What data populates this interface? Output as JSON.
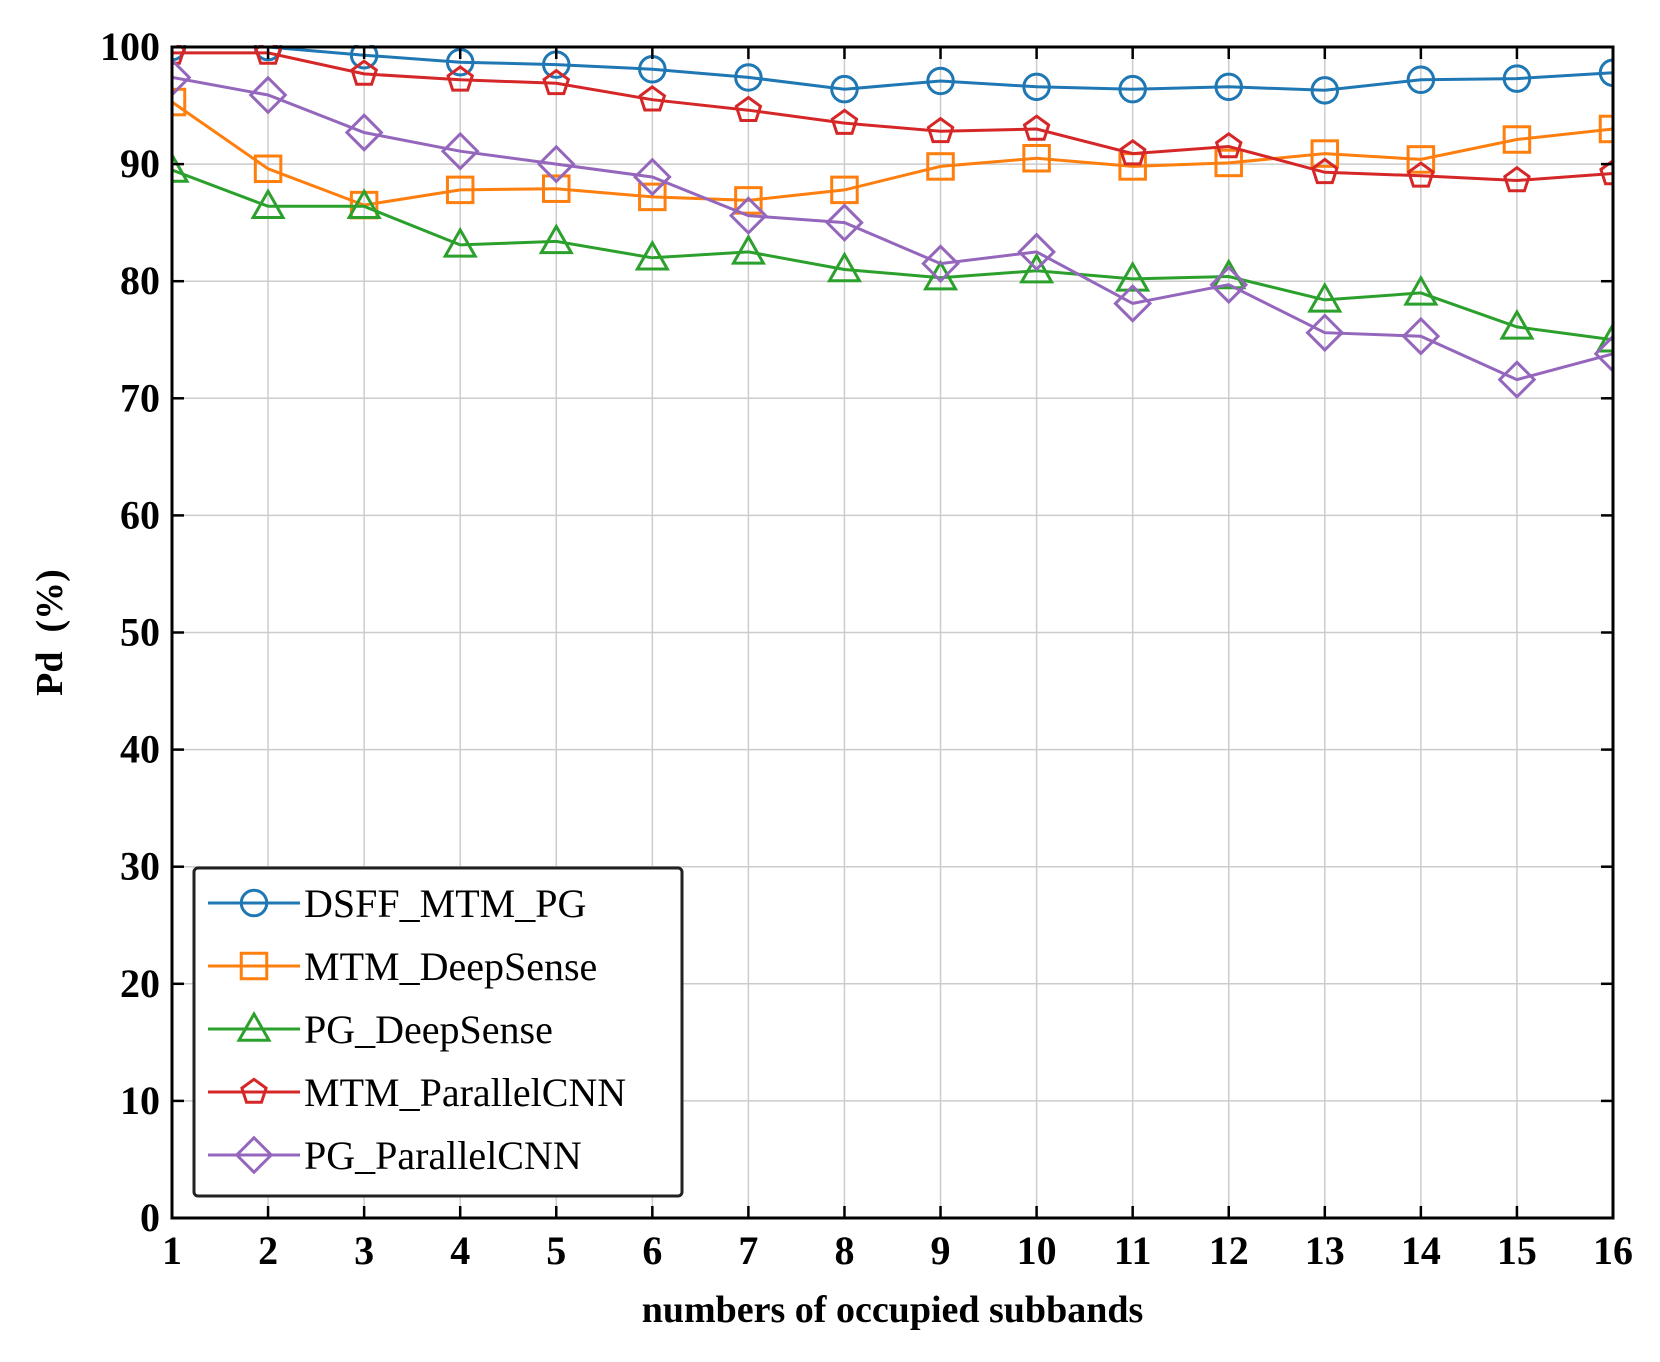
{
  "chart_data": {
    "type": "line",
    "title": "",
    "xlabel": "numbers of occupied subbands",
    "ylabel": "Pd  (%)",
    "xlim": [
      1,
      16
    ],
    "ylim": [
      0,
      100
    ],
    "x_ticks": [
      1,
      2,
      3,
      4,
      5,
      6,
      7,
      8,
      9,
      10,
      11,
      12,
      13,
      14,
      15,
      16
    ],
    "y_ticks": [
      0,
      10,
      20,
      30,
      40,
      50,
      60,
      70,
      80,
      90,
      100
    ],
    "grid": true,
    "legend_position": "bottom-left",
    "x": [
      1,
      2,
      3,
      4,
      5,
      6,
      7,
      8,
      9,
      10,
      11,
      12,
      13,
      14,
      15,
      16
    ],
    "series": [
      {
        "name": "DSFF_MTM_PG",
        "color": "#1f77b4",
        "marker": "circle",
        "values": [
          100.0,
          100.0,
          99.3,
          98.7,
          98.5,
          98.1,
          97.4,
          96.4,
          97.1,
          96.6,
          96.4,
          96.6,
          96.3,
          97.2,
          97.3,
          97.8
        ]
      },
      {
        "name": "MTM_DeepSense",
        "color": "#ff7f0e",
        "marker": "square",
        "values": [
          95.3,
          89.6,
          86.5,
          87.8,
          87.9,
          87.2,
          86.9,
          87.8,
          89.8,
          90.5,
          89.8,
          90.1,
          90.9,
          90.4,
          92.1,
          93.0
        ]
      },
      {
        "name": "PG_DeepSense",
        "color": "#2ca02c",
        "marker": "triangle",
        "values": [
          89.5,
          86.4,
          86.4,
          83.1,
          83.4,
          82.0,
          82.5,
          81.0,
          80.3,
          80.9,
          80.2,
          80.4,
          78.4,
          79.0,
          76.1,
          75.0
        ]
      },
      {
        "name": "MTM_ParallelCNN",
        "color": "#d62728",
        "marker": "pentagon",
        "values": [
          99.5,
          99.5,
          97.7,
          97.2,
          96.9,
          95.5,
          94.6,
          93.5,
          92.8,
          93.0,
          90.9,
          91.5,
          89.3,
          89.0,
          88.6,
          89.2
        ]
      },
      {
        "name": "PG_ParallelCNN",
        "color": "#9467bd",
        "marker": "diamond",
        "values": [
          97.4,
          95.9,
          92.7,
          91.1,
          90.0,
          88.9,
          85.6,
          85.0,
          81.5,
          82.5,
          78.1,
          79.7,
          75.6,
          75.3,
          71.6,
          73.8
        ]
      }
    ]
  }
}
